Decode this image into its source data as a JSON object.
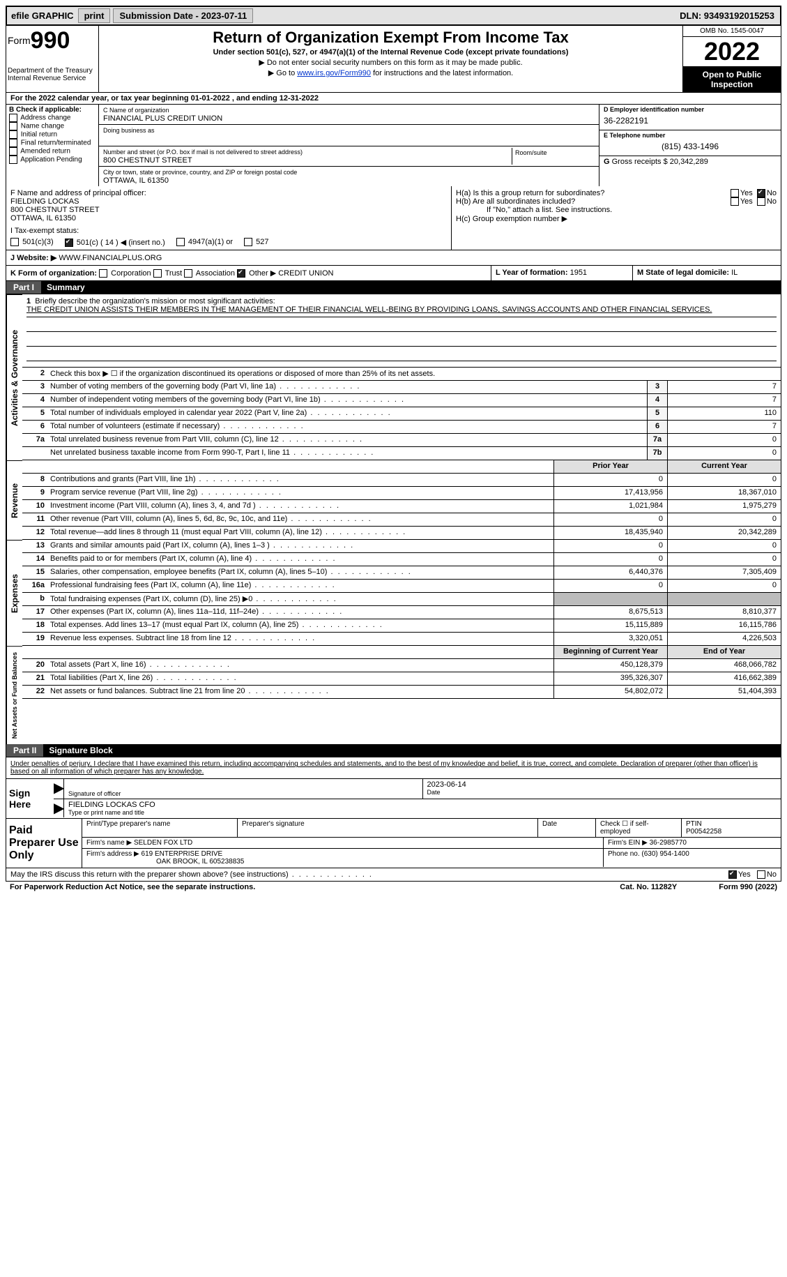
{
  "topbar": {
    "efile": "efile GRAPHIC",
    "print": "print",
    "sub_label": "Submission Date - 2023-07-11",
    "dln_label": "DLN: 93493192015253"
  },
  "header": {
    "form_prefix": "Form",
    "form_num": "990",
    "dept": "Department of the Treasury\nInternal Revenue Service",
    "title": "Return of Organization Exempt From Income Tax",
    "sub": "Under section 501(c), 527, or 4947(a)(1) of the Internal Revenue Code (except private foundations)",
    "note1": "▶ Do not enter social security numbers on this form as it may be made public.",
    "note2_pre": "▶ Go to ",
    "note2_link": "www.irs.gov/Form990",
    "note2_post": " for instructions and the latest information.",
    "omb": "OMB No. 1545-0047",
    "year": "2022",
    "open": "Open to Public Inspection"
  },
  "A": "For the 2022 calendar year, or tax year beginning 01-01-2022    , and ending 12-31-2022",
  "B": {
    "header": "B Check if applicable:",
    "items": [
      "Address change",
      "Name change",
      "Initial return",
      "Final return/terminated",
      "Amended return",
      "Application Pending"
    ]
  },
  "C": {
    "name_lbl": "C Name of organization",
    "name": "FINANCIAL PLUS CREDIT UNION",
    "dba_lbl": "Doing business as",
    "dba": "",
    "street_lbl": "Number and street (or P.O. box if mail is not delivered to street address)",
    "street": "800 CHESTNUT STREET",
    "room_lbl": "Room/suite",
    "city_lbl": "City or town, state or province, country, and ZIP or foreign postal code",
    "city": "OTTAWA, IL  61350"
  },
  "D": {
    "lbl": "D Employer identification number",
    "val": "36-2282191"
  },
  "E": {
    "lbl": "E Telephone number",
    "val": "(815) 433-1496"
  },
  "G": {
    "lbl": "G",
    "txt": "Gross receipts $",
    "val": "20,342,289"
  },
  "F": {
    "lbl": "F  Name and address of principal officer:",
    "name": "FIELDING LOCKAS",
    "street": "800 CHESTNUT STREET",
    "city": "OTTAWA, IL  61350"
  },
  "H": {
    "a_lbl": "H(a)  Is this a group return for subordinates?",
    "b_lbl": "H(b)  Are all subordinates included?",
    "b_note": "If \"No,\" attach a list. See instructions.",
    "c_lbl": "H(c)  Group exemption number ▶",
    "yes": "Yes",
    "no": "No"
  },
  "I": {
    "lbl": "I   Tax-exempt status:",
    "opts": [
      "501(c)(3)",
      "501(c) ( 14 ) ◀ (insert no.)",
      "4947(a)(1) or",
      "527"
    ]
  },
  "J": {
    "lbl": "J   Website: ▶",
    "val": " WWW.FINANCIALPLUS.ORG"
  },
  "K": {
    "lbl": "K Form of organization:",
    "opts": [
      "Corporation",
      "Trust",
      "Association",
      "Other ▶"
    ],
    "other": "CREDIT UNION"
  },
  "L": {
    "lbl": "L Year of formation:",
    "val": "1951"
  },
  "M": {
    "lbl": "M State of legal domicile:",
    "val": "IL"
  },
  "part1": {
    "num": "Part I",
    "title": "Summary"
  },
  "summary": {
    "l1_lbl": "1",
    "l1_txt": "Briefly describe the organization's mission or most significant activities:",
    "l1_val": "THE CREDIT UNION ASSISTS THEIR MEMBERS IN THE MANAGEMENT OF THEIR FINANCIAL WELL-BEING BY PROVIDING LOANS, SAVINGS ACCOUNTS AND OTHER FINANCIAL SERVICES.",
    "l2": "Check this box ▶ ☐ if the organization discontinued its operations or disposed of more than 25% of its net assets.",
    "lines_ag": [
      {
        "n": "3",
        "t": "Number of voting members of the governing body (Part VI, line 1a)",
        "c": "3",
        "v": "7"
      },
      {
        "n": "4",
        "t": "Number of independent voting members of the governing body (Part VI, line 1b)",
        "c": "4",
        "v": "7"
      },
      {
        "n": "5",
        "t": "Total number of individuals employed in calendar year 2022 (Part V, line 2a)",
        "c": "5",
        "v": "110"
      },
      {
        "n": "6",
        "t": "Total number of volunteers (estimate if necessary)",
        "c": "6",
        "v": "7"
      },
      {
        "n": "7a",
        "t": "Total unrelated business revenue from Part VIII, column (C), line 12",
        "c": "7a",
        "v": "0"
      },
      {
        "n": "",
        "t": "Net unrelated business taxable income from Form 990-T, Part I, line 11",
        "c": "7b",
        "v": "0"
      }
    ],
    "hdr_prior": "Prior Year",
    "hdr_curr": "Current Year",
    "rev": [
      {
        "n": "8",
        "t": "Contributions and grants (Part VIII, line 1h)",
        "p": "0",
        "c": "0"
      },
      {
        "n": "9",
        "t": "Program service revenue (Part VIII, line 2g)",
        "p": "17,413,956",
        "c": "18,367,010"
      },
      {
        "n": "10",
        "t": "Investment income (Part VIII, column (A), lines 3, 4, and 7d )",
        "p": "1,021,984",
        "c": "1,975,279"
      },
      {
        "n": "11",
        "t": "Other revenue (Part VIII, column (A), lines 5, 6d, 8c, 9c, 10c, and 11e)",
        "p": "0",
        "c": "0"
      },
      {
        "n": "12",
        "t": "Total revenue—add lines 8 through 11 (must equal Part VIII, column (A), line 12)",
        "p": "18,435,940",
        "c": "20,342,289"
      }
    ],
    "exp": [
      {
        "n": "13",
        "t": "Grants and similar amounts paid (Part IX, column (A), lines 1–3 )",
        "p": "0",
        "c": "0"
      },
      {
        "n": "14",
        "t": "Benefits paid to or for members (Part IX, column (A), line 4)",
        "p": "0",
        "c": "0"
      },
      {
        "n": "15",
        "t": "Salaries, other compensation, employee benefits (Part IX, column (A), lines 5–10)",
        "p": "6,440,376",
        "c": "7,305,409"
      },
      {
        "n": "16a",
        "t": "Professional fundraising fees (Part IX, column (A), line 11e)",
        "p": "0",
        "c": "0"
      },
      {
        "n": "b",
        "t": "Total fundraising expenses (Part IX, column (D), line 25) ▶0",
        "p": "",
        "c": "",
        "shaded": true
      },
      {
        "n": "17",
        "t": "Other expenses (Part IX, column (A), lines 11a–11d, 11f–24e)",
        "p": "8,675,513",
        "c": "8,810,377"
      },
      {
        "n": "18",
        "t": "Total expenses. Add lines 13–17 (must equal Part IX, column (A), line 25)",
        "p": "15,115,889",
        "c": "16,115,786"
      },
      {
        "n": "19",
        "t": "Revenue less expenses. Subtract line 18 from line 12",
        "p": "3,320,051",
        "c": "4,226,503"
      }
    ],
    "na_hdr_prior": "Beginning of Current Year",
    "na_hdr_curr": "End of Year",
    "na": [
      {
        "n": "20",
        "t": "Total assets (Part X, line 16)",
        "p": "450,128,379",
        "c": "468,066,782"
      },
      {
        "n": "21",
        "t": "Total liabilities (Part X, line 26)",
        "p": "395,326,307",
        "c": "416,662,389"
      },
      {
        "n": "22",
        "t": "Net assets or fund balances. Subtract line 21 from line 20",
        "p": "54,802,072",
        "c": "51,404,393"
      }
    ]
  },
  "side": {
    "ag": "Activities & Governance",
    "rev": "Revenue",
    "exp": "Expenses",
    "na": "Net Assets or Fund Balances"
  },
  "part2": {
    "num": "Part II",
    "title": "Signature Block"
  },
  "decl": "Under penalties of perjury, I declare that I have examined this return, including accompanying schedules and statements, and to the best of my knowledge and belief, it is true, correct, and complete. Declaration of preparer (other than officer) is based on all information of which preparer has any knowledge.",
  "sign": {
    "lbl": "Sign Here",
    "sig_lbl": "Signature of officer",
    "date": "2023-06-14",
    "date_lbl": "Date",
    "name": "FIELDING LOCKAS CFO",
    "name_lbl": "Type or print name and title"
  },
  "paid": {
    "lbl": "Paid Preparer Use Only",
    "r1": {
      "a": "Print/Type preparer's name",
      "b": "Preparer's signature",
      "c": "Date",
      "d_lbl": "Check ☐ if self-employed",
      "e_lbl": "PTIN",
      "e": "P00542258"
    },
    "r2": {
      "a": "Firm's name   ▶ ",
      "av": "SELDEN FOX LTD",
      "b": "Firm's EIN ▶ ",
      "bv": "36-2985770"
    },
    "r3": {
      "a": "Firm's address ▶ ",
      "av": "619 ENTERPRISE DRIVE",
      "av2": "OAK BROOK, IL  605238835",
      "b": "Phone no. ",
      "bv": "(630) 954-1400"
    }
  },
  "footer": {
    "q": "May the IRS discuss this return with the preparer shown above? (see instructions)",
    "yes": "Yes",
    "no": "No",
    "pra": "For Paperwork Reduction Act Notice, see the separate instructions.",
    "cat": "Cat. No. 11282Y",
    "form": "Form 990 (2022)"
  }
}
